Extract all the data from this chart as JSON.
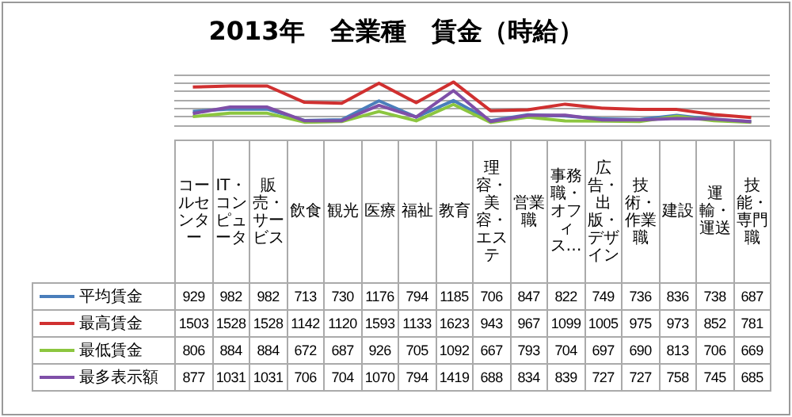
{
  "chart_data": {
    "type": "line",
    "title": "2013年　全業種　賃金（時給）",
    "categories": [
      "コールセンター",
      "IT・コンピュータ",
      "販売・サービス",
      "飲食",
      "観光",
      "医療",
      "福祉",
      "教育",
      "理容・美容・エステ",
      "営業職",
      "事務職・オフィス…",
      "広告・出版・デザイン",
      "技術・作業職",
      "建設",
      "運輸・運送",
      "技能・専門職"
    ],
    "series": [
      {
        "name": "平均賃金",
        "color": "#4a7ebb",
        "values": [
          929,
          982,
          982,
          713,
          730,
          1176,
          794,
          1185,
          706,
          847,
          822,
          749,
          736,
          836,
          738,
          687
        ]
      },
      {
        "name": "最高賃金",
        "color": "#d03030",
        "values": [
          1503,
          1528,
          1528,
          1142,
          1120,
          1593,
          1133,
          1623,
          943,
          967,
          1099,
          1005,
          975,
          973,
          852,
          781
        ]
      },
      {
        "name": "最低賃金",
        "color": "#8cc63f",
        "values": [
          806,
          884,
          884,
          672,
          687,
          926,
          705,
          1092,
          667,
          793,
          704,
          697,
          690,
          813,
          706,
          669
        ]
      },
      {
        "name": "最多表示額",
        "color": "#7f4fa8",
        "values": [
          877,
          1031,
          1031,
          706,
          704,
          1070,
          794,
          1419,
          688,
          834,
          839,
          727,
          727,
          758,
          745,
          685
        ]
      }
    ],
    "ylim": [
      600,
      1800
    ],
    "yticks": [
      {
        "value": 600,
        "label": null
      },
      {
        "value": 800,
        "label": null
      },
      {
        "value": 1000,
        "label": null
      },
      {
        "value": 1200,
        "label": null
      },
      {
        "value": 1400,
        "label": null
      },
      {
        "value": 1600,
        "label": null
      },
      {
        "value": 1800,
        "label": null
      }
    ],
    "grid": "y",
    "legend": "bottom left",
    "data_labels": true,
    "tick_labels": "x",
    "marker": "none",
    "line_style": "solid"
  }
}
